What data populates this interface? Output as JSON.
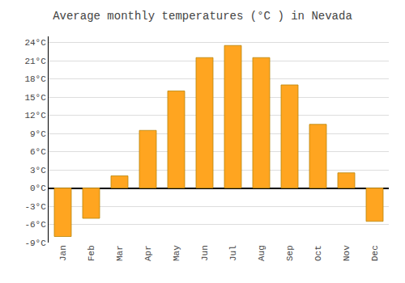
{
  "chart_data": {
    "type": "bar",
    "title": "Average monthly temperatures (°C ) in Nevada",
    "categories": [
      "Jan",
      "Feb",
      "Mar",
      "Apr",
      "May",
      "Jun",
      "Jul",
      "Aug",
      "Sep",
      "Oct",
      "Nov",
      "Dec"
    ],
    "values": [
      -8.0,
      -5.0,
      2.0,
      9.5,
      16.0,
      21.5,
      23.5,
      21.5,
      17.0,
      10.5,
      2.5,
      -5.5
    ],
    "color": "#FFA520",
    "ylim": [
      -9,
      25
    ],
    "yticks": [
      {
        "value": -9,
        "label": "-9°C"
      },
      {
        "value": -6,
        "label": "-6°C"
      },
      {
        "value": -3,
        "label": "-3°C"
      },
      {
        "value": 0,
        "label": "0°C"
      },
      {
        "value": 3,
        "label": "3°C"
      },
      {
        "value": 6,
        "label": "6°C"
      },
      {
        "value": 9,
        "label": "9°C"
      },
      {
        "value": 12,
        "label": "12°C"
      },
      {
        "value": 15,
        "label": "15°C"
      },
      {
        "value": 18,
        "label": "18°C"
      },
      {
        "value": 21,
        "label": "21°C"
      },
      {
        "value": 24,
        "label": "24°C"
      }
    ],
    "grid": true
  }
}
